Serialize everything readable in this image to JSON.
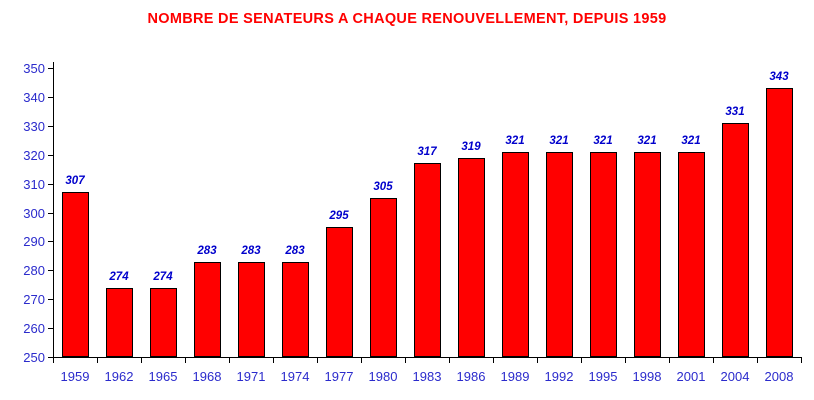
{
  "chart_data": {
    "type": "bar",
    "title": "NOMBRE DE SENATEURS A CHAQUE RENOUVELLEMENT, DEPUIS 1959",
    "categories": [
      "1959",
      "1962",
      "1965",
      "1968",
      "1971",
      "1974",
      "1977",
      "1980",
      "1983",
      "1986",
      "1989",
      "1992",
      "1995",
      "1998",
      "2001",
      "2004",
      "2008"
    ],
    "values": [
      307,
      274,
      274,
      283,
      283,
      283,
      295,
      305,
      317,
      319,
      321,
      321,
      321,
      321,
      321,
      331,
      343
    ],
    "value_labels": [
      "307",
      "274",
      "274",
      "283",
      "283",
      "283",
      "295",
      "305",
      "317",
      "319",
      "321",
      "321",
      "321",
      "321",
      "321",
      "331",
      "343"
    ],
    "xlabel": "",
    "ylabel": "",
    "ylim": [
      250,
      350
    ],
    "ytick_step": 10,
    "ytick_labels": [
      "250",
      "260",
      "270",
      "280",
      "290",
      "300",
      "310",
      "320",
      "330",
      "340",
      "350"
    ],
    "grid": false,
    "legend": null,
    "colors": {
      "title": "#FF0000",
      "bar_fill": "#FF0000",
      "bar_border": "#000000",
      "axis_line": "#000000",
      "axis_label": "#2B2BCC",
      "value_label": "#0000CC",
      "background": "#FFFFFF"
    }
  }
}
